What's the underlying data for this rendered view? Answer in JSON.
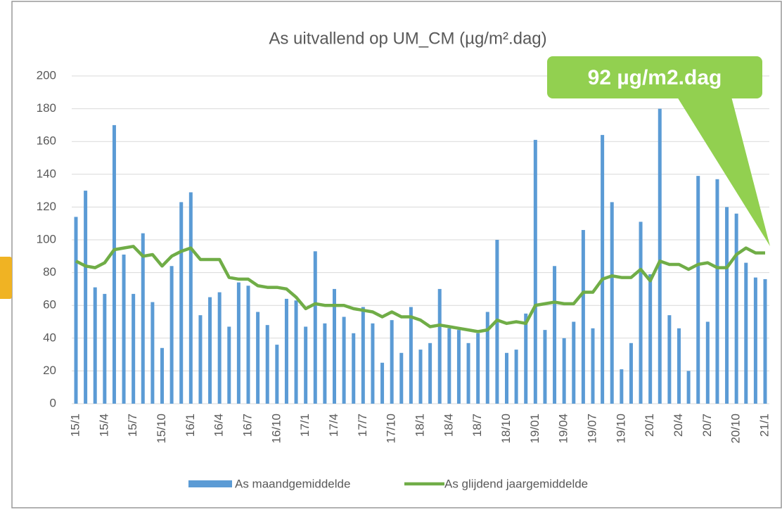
{
  "chart_data": {
    "type": "bar_line",
    "title": "As uitvallend op UM_CM (µg/m².dag)",
    "annotation": "92 µg/m2.dag",
    "categories": [
      "15/1",
      null,
      null,
      "15/4",
      null,
      null,
      "15/7",
      null,
      null,
      "15/10",
      null,
      null,
      "16/1",
      null,
      null,
      "16/4",
      null,
      null,
      "16/7",
      null,
      null,
      "16/10",
      null,
      null,
      "17/1",
      null,
      null,
      "17/4",
      null,
      null,
      "17/7",
      null,
      null,
      "17/10",
      null,
      null,
      "18/1",
      null,
      null,
      "18/4",
      null,
      null,
      "18/7",
      null,
      null,
      "18/10",
      null,
      null,
      "19/01",
      null,
      null,
      "19/04",
      null,
      null,
      "19/07",
      null,
      null,
      "19/10",
      null,
      null,
      "20/1",
      null,
      null,
      "20/4",
      null,
      null,
      "20/7",
      null,
      null,
      "20/10",
      null,
      null,
      "21/1"
    ],
    "series": [
      {
        "name": "As maandgemiddelde",
        "type": "bar",
        "color": "#5b9bd5",
        "values": [
          114,
          130,
          71,
          67,
          170,
          91,
          67,
          104,
          62,
          34,
          84,
          123,
          129,
          54,
          65,
          68,
          47,
          74,
          72,
          56,
          48,
          36,
          64,
          63,
          47,
          93,
          49,
          70,
          53,
          43,
          59,
          49,
          25,
          51,
          31,
          59,
          33,
          37,
          70,
          46,
          45,
          37,
          43,
          56,
          100,
          31,
          33,
          55,
          161,
          45,
          84,
          40,
          50,
          106,
          46,
          164,
          123,
          21,
          37,
          111,
          79,
          180,
          54,
          46,
          20,
          139,
          50,
          137,
          120,
          116,
          86,
          77,
          76
        ]
      },
      {
        "name": "As glijdend jaargemiddelde",
        "type": "line",
        "color": "#70ad47",
        "values": [
          87,
          84,
          83,
          86,
          94,
          95,
          96,
          90,
          91,
          84,
          90,
          93,
          95,
          88,
          88,
          88,
          77,
          76,
          76,
          72,
          71,
          71,
          70,
          65,
          58,
          61,
          60,
          60,
          60,
          58,
          57,
          56,
          53,
          56,
          53,
          53,
          51,
          47,
          48,
          47,
          46,
          45,
          44,
          45,
          51,
          49,
          50,
          49,
          60,
          61,
          62,
          61,
          61,
          68,
          68,
          76,
          78,
          77,
          77,
          82,
          75,
          87,
          85,
          85,
          82,
          85,
          86,
          83,
          83,
          91,
          95,
          92,
          92
        ]
      }
    ],
    "ylim": [
      0,
      200
    ],
    "yticks": [
      0,
      20,
      40,
      60,
      80,
      100,
      120,
      140,
      160,
      180,
      200
    ],
    "grid": true
  }
}
